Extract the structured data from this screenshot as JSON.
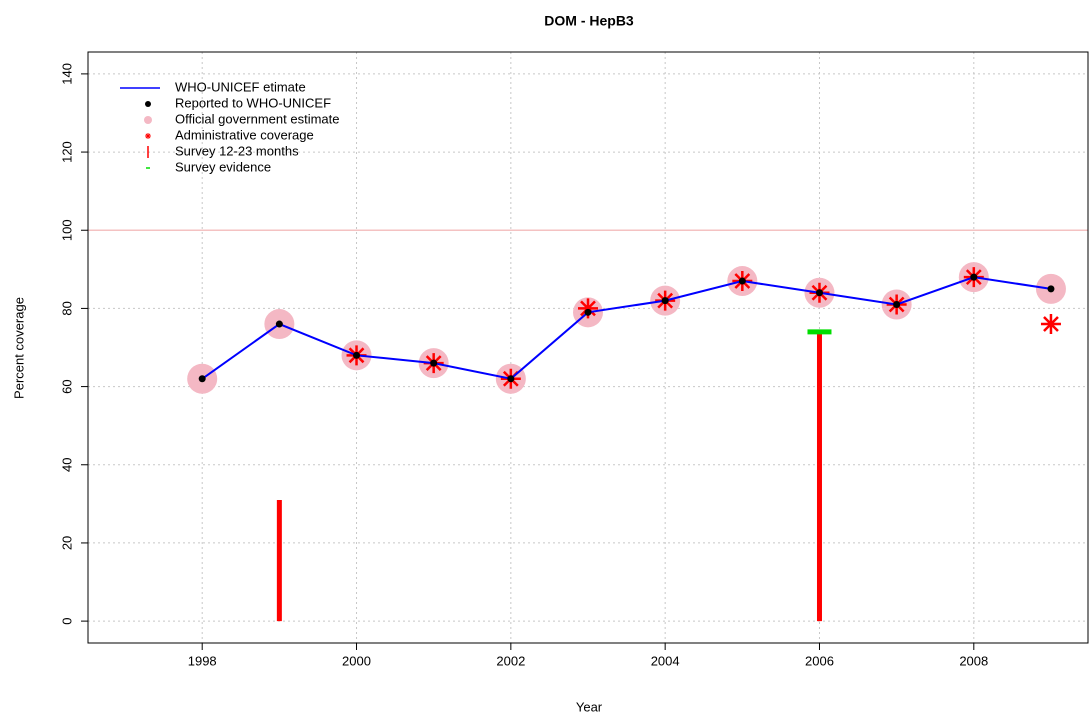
{
  "chart_data": {
    "type": "line",
    "title": "DOM  -  HepB3",
    "x_label": "Year",
    "y_label": "Percent coverage",
    "x": [
      1998,
      1999,
      2000,
      2001,
      2002,
      2003,
      2004,
      2005,
      2006,
      2007,
      2008,
      2009
    ],
    "xlim": [
      1996.52,
      2009.48
    ],
    "xticks": [
      1998,
      2000,
      2002,
      2004,
      2006,
      2008
    ],
    "ylim": [
      -5.6,
      145.6
    ],
    "yticks": [
      0,
      20,
      40,
      60,
      80,
      100,
      120,
      140
    ],
    "grid": true,
    "reference_line": 100,
    "reference_color": "#f4c2c2",
    "legend": "top-left",
    "series": [
      {
        "name": "WHO-UNICEF etimate",
        "marker": "line",
        "color": "#0000ff",
        "values": [
          62,
          76,
          68,
          66,
          62,
          79,
          82,
          87,
          84,
          81,
          88,
          85
        ]
      },
      {
        "name": "Reported to WHO-UNICEF",
        "marker": "dot",
        "color": "#000000",
        "values": [
          62,
          76,
          68,
          66,
          62,
          79,
          82,
          87,
          84,
          81,
          88,
          85
        ]
      },
      {
        "name": "Official government estimate",
        "marker": "circle",
        "color": "#f4b8c4",
        "values": [
          62,
          76,
          68,
          66,
          62,
          79,
          82,
          87,
          84,
          81,
          88,
          85
        ]
      },
      {
        "name": "Administrative coverage",
        "marker": "star",
        "color": "#ff0000",
        "values": [
          null,
          null,
          68,
          66,
          62,
          80,
          82,
          87,
          84,
          81,
          88,
          76
        ]
      },
      {
        "name": "Survey 12-23 months",
        "marker": "vbar",
        "color": "#ff0000",
        "values": [
          null,
          31,
          null,
          null,
          null,
          null,
          null,
          null,
          74,
          null,
          null,
          null
        ]
      },
      {
        "name": "Survey evidence",
        "marker": "hbar",
        "color": "#00dd00",
        "values": [
          null,
          null,
          null,
          null,
          null,
          null,
          null,
          null,
          74,
          null,
          null,
          null
        ]
      }
    ]
  }
}
